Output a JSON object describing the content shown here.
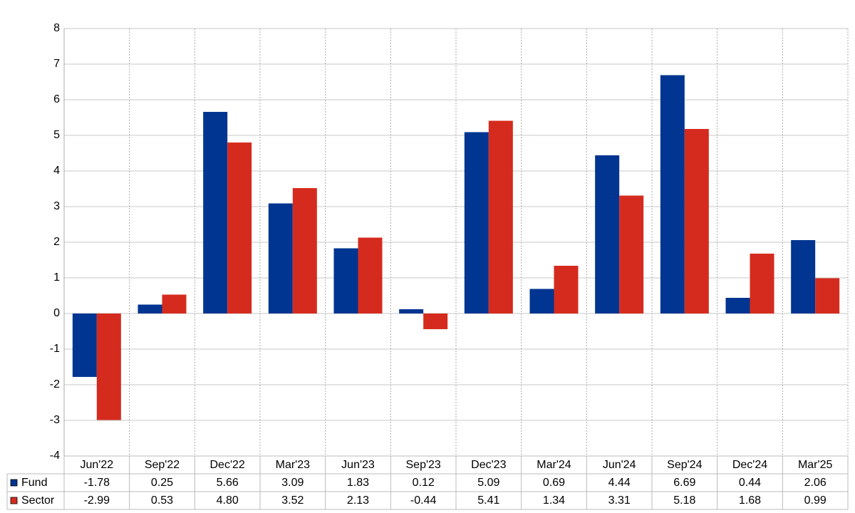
{
  "chart_data": {
    "type": "bar",
    "categories": [
      "Jun'22",
      "Sep'22",
      "Dec'22",
      "Mar'23",
      "Jun'23",
      "Sep'23",
      "Dec'23",
      "Mar'24",
      "Jun'24",
      "Sep'24",
      "Dec'24",
      "Mar'25"
    ],
    "series": [
      {
        "name": "Fund",
        "color": "#003591",
        "values": [
          -1.78,
          0.25,
          5.66,
          3.09,
          1.83,
          0.12,
          5.09,
          0.69,
          4.44,
          6.69,
          0.44,
          2.06
        ]
      },
      {
        "name": "Sector",
        "color": "#d52b1e",
        "values": [
          -2.99,
          0.53,
          4.8,
          3.52,
          2.13,
          -0.44,
          5.41,
          1.34,
          3.31,
          5.18,
          1.68,
          0.99
        ],
        "value_labels": [
          "-2.99",
          "0.53",
          "4.80",
          "3.52",
          "2.13",
          "-0.44",
          "5.41",
          "1.34",
          "3.31",
          "5.18",
          "1.68",
          "0.99"
        ]
      }
    ],
    "ylim": [
      -4,
      8
    ],
    "yticks": [
      -4,
      -3,
      -2,
      -1,
      0,
      1,
      2,
      3,
      4,
      5,
      6,
      7,
      8
    ],
    "grid": true
  }
}
